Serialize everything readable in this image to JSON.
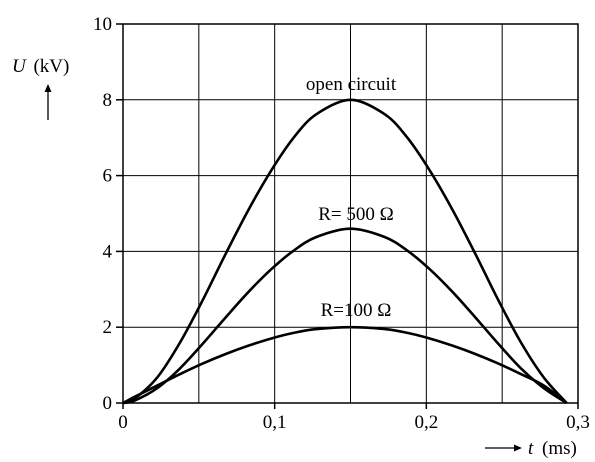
{
  "chart_data": {
    "type": "line",
    "xlabel": {
      "var": "t",
      "unit": "(ms)"
    },
    "ylabel": {
      "var": "U",
      "unit": "(kV)"
    },
    "xlim": [
      0,
      0.3
    ],
    "ylim": [
      0,
      10
    ],
    "x_ticks": [
      {
        "value": 0,
        "label": "0"
      },
      {
        "value": 0.1,
        "label": "0,1"
      },
      {
        "value": 0.2,
        "label": "0,2"
      },
      {
        "value": 0.3,
        "label": "0,3"
      }
    ],
    "y_ticks": [
      {
        "value": 0,
        "label": "0"
      },
      {
        "value": 2,
        "label": "2"
      },
      {
        "value": 4,
        "label": "4"
      },
      {
        "value": 6,
        "label": "6"
      },
      {
        "value": 8,
        "label": "8"
      },
      {
        "value": 10,
        "label": "10"
      }
    ],
    "grid": true,
    "grid_x_step": 0.05,
    "grid_y_step": 2,
    "line_color": "#000000",
    "series": [
      {
        "name": "open circuit",
        "x": [
          0,
          0.0075,
          0.0225,
          0.0375,
          0.0525,
          0.0675,
          0.0825,
          0.0975,
          0.1125,
          0.1275,
          0.15,
          0.1725,
          0.1875,
          0.2025,
          0.2175,
          0.2325,
          0.2475,
          0.2625,
          0.2775,
          0.2925
        ],
        "y": [
          0,
          0.11,
          0.67,
          1.59,
          2.71,
          3.92,
          5.08,
          6.12,
          7.0,
          7.62,
          8.0,
          7.62,
          7.0,
          6.12,
          5.08,
          3.92,
          2.71,
          1.59,
          0.67,
          0
        ]
      },
      {
        "name": "R= 500 Ω",
        "x": [
          0,
          0.0075,
          0.0225,
          0.0375,
          0.0525,
          0.0675,
          0.0825,
          0.0975,
          0.1125,
          0.1275,
          0.15,
          0.1725,
          0.1875,
          0.2025,
          0.2175,
          0.2325,
          0.2475,
          0.2625,
          0.2775,
          0.2925
        ],
        "y": [
          0,
          0.06,
          0.39,
          0.91,
          1.56,
          2.25,
          2.92,
          3.52,
          4.02,
          4.38,
          4.6,
          4.38,
          4.02,
          3.52,
          2.92,
          2.25,
          1.56,
          0.91,
          0.39,
          0
        ]
      },
      {
        "name": "R=100 Ω",
        "x": [
          0,
          0.0075,
          0.0225,
          0.0375,
          0.0525,
          0.0675,
          0.0825,
          0.0975,
          0.1125,
          0.1275,
          0.15,
          0.1725,
          0.1875,
          0.2025,
          0.2175,
          0.2325,
          0.2475,
          0.2625,
          0.2775,
          0.2925
        ],
        "y": [
          0,
          0.16,
          0.46,
          0.76,
          1.04,
          1.29,
          1.51,
          1.7,
          1.85,
          1.95,
          2.0,
          1.95,
          1.85,
          1.7,
          1.51,
          1.29,
          1.04,
          0.76,
          0.46,
          0
        ]
      }
    ]
  }
}
